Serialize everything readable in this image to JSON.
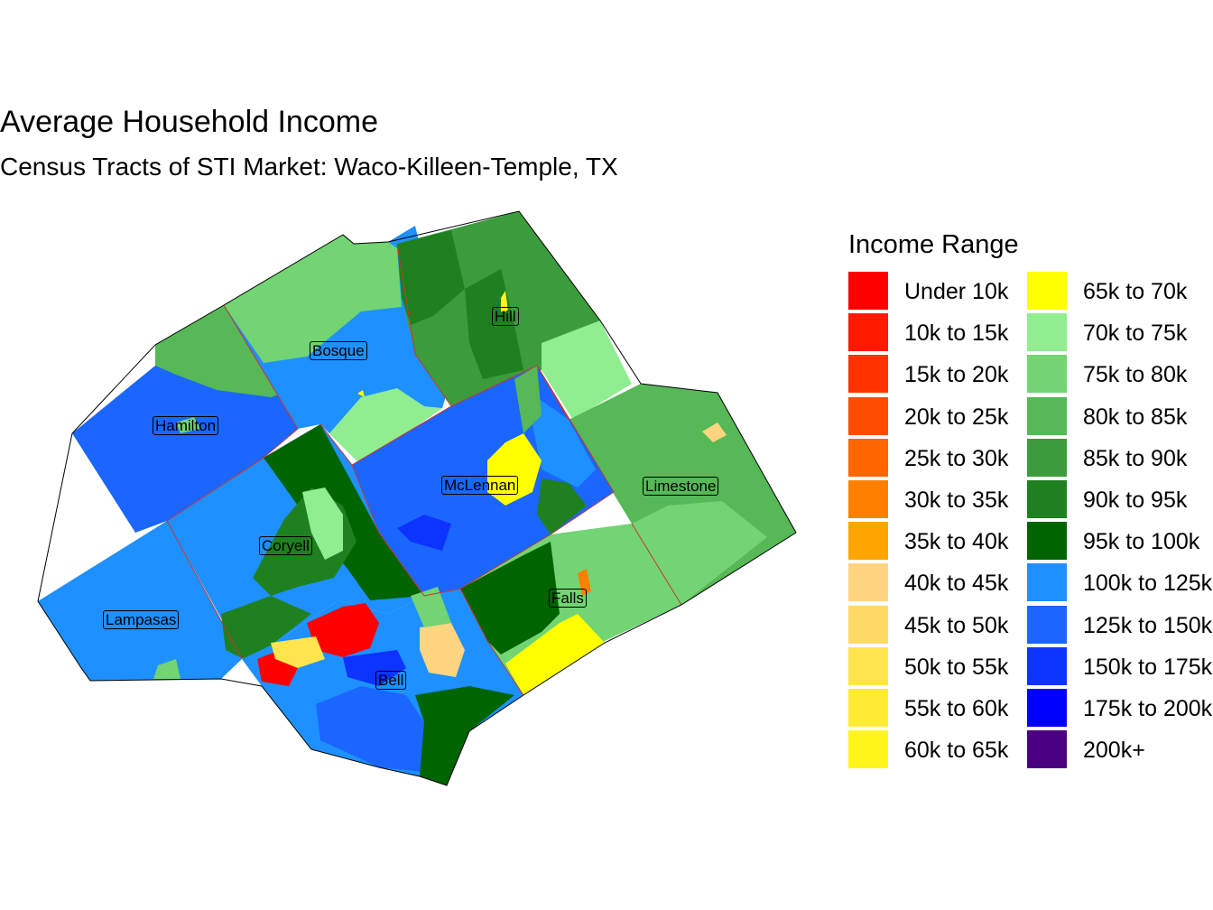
{
  "title": "Average Household Income",
  "subtitle": "Census Tracts of STI Market: Waco-Killeen-Temple, TX",
  "legend": {
    "title": "Income Range",
    "items": [
      {
        "label": "Under 10k",
        "color": "#FF0000"
      },
      {
        "label": "10k to 15k",
        "color": "#FF1A00"
      },
      {
        "label": "15k to 20k",
        "color": "#FF3300"
      },
      {
        "label": "20k to 25k",
        "color": "#FF4D00"
      },
      {
        "label": "25k to 30k",
        "color": "#FF6600"
      },
      {
        "label": "30k to 35k",
        "color": "#FF8000"
      },
      {
        "label": "35k to 40k",
        "color": "#FFA500"
      },
      {
        "label": "40k to 45k",
        "color": "#FFD580"
      },
      {
        "label": "45k to 50k",
        "color": "#FFDB66"
      },
      {
        "label": "50k to 55k",
        "color": "#FFE54D"
      },
      {
        "label": "55k to 60k",
        "color": "#FFEB33"
      },
      {
        "label": "60k to 65k",
        "color": "#FFF51A"
      },
      {
        "label": "65k to 70k",
        "color": "#FFFF00"
      },
      {
        "label": "70k to 75k",
        "color": "#90EE90"
      },
      {
        "label": "75k to 80k",
        "color": "#72D472"
      },
      {
        "label": "80k to 85k",
        "color": "#56B856"
      },
      {
        "label": "85k to 90k",
        "color": "#3C9C3C"
      },
      {
        "label": "90k to 95k",
        "color": "#1F801F"
      },
      {
        "label": "95k to 100k",
        "color": "#006400"
      },
      {
        "label": "100k to 125k",
        "color": "#1E90FF"
      },
      {
        "label": "125k to 150k",
        "color": "#1A66FF"
      },
      {
        "label": "150k to 175k",
        "color": "#0D33FF"
      },
      {
        "label": "175k to 200k",
        "color": "#0000FF"
      },
      {
        "label": "200k+",
        "color": "#4B0082"
      }
    ]
  },
  "counties": [
    {
      "name": "Hill"
    },
    {
      "name": "Bosque"
    },
    {
      "name": "Hamilton"
    },
    {
      "name": "McLennan"
    },
    {
      "name": "Limestone"
    },
    {
      "name": "Coryell"
    },
    {
      "name": "Lampasas"
    },
    {
      "name": "Falls"
    },
    {
      "name": "Bell"
    }
  ]
}
